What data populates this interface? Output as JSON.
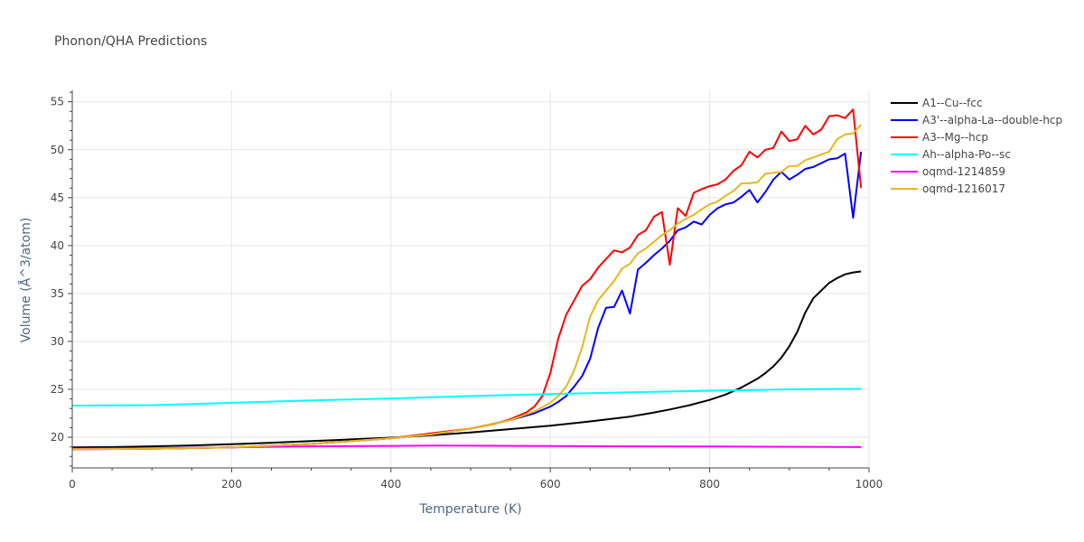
{
  "chart_data": {
    "type": "line",
    "title": "Phonon/QHA Predictions",
    "xlabel": "Temperature (K)",
    "ylabel": "Volume (Å^3/atom)",
    "xlim": [
      0,
      1000
    ],
    "ylim": [
      16.8,
      56.2
    ],
    "xticks": [
      0,
      200,
      400,
      600,
      800,
      1000
    ],
    "yticks": [
      20,
      25,
      30,
      35,
      40,
      45,
      50,
      55
    ],
    "grid": true,
    "legend_position": "right",
    "series": [
      {
        "name": "A1--Cu--fcc",
        "color": "#000000",
        "x": [
          0,
          50,
          100,
          150,
          200,
          250,
          300,
          350,
          400,
          450,
          500,
          550,
          600,
          650,
          700,
          725,
          750,
          775,
          800,
          820,
          840,
          860,
          870,
          880,
          890,
          900,
          910,
          920,
          930,
          940,
          950,
          960,
          970,
          980,
          990
        ],
        "y": [
          18.95,
          18.98,
          19.05,
          19.15,
          19.28,
          19.43,
          19.6,
          19.78,
          19.96,
          20.2,
          20.5,
          20.85,
          21.2,
          21.65,
          22.15,
          22.5,
          22.9,
          23.35,
          23.9,
          24.45,
          25.2,
          26.1,
          26.7,
          27.4,
          28.3,
          29.5,
          31.0,
          33.0,
          34.5,
          35.3,
          36.1,
          36.6,
          37.0,
          37.2,
          37.3
        ]
      },
      {
        "name": "A3'--alpha-La--double-hcp",
        "color": "#0000ff",
        "x": [
          0,
          100,
          200,
          300,
          400,
          450,
          500,
          550,
          580,
          600,
          610,
          620,
          630,
          640,
          650,
          660,
          670,
          680,
          690,
          700,
          710,
          720,
          730,
          740,
          750,
          760,
          770,
          780,
          790,
          800,
          810,
          820,
          830,
          840,
          850,
          860,
          870,
          880,
          890,
          900,
          910,
          920,
          930,
          940,
          950,
          960,
          970,
          980,
          990
        ],
        "y": [
          18.75,
          18.8,
          18.95,
          19.3,
          19.9,
          20.3,
          20.9,
          21.8,
          22.5,
          23.2,
          23.7,
          24.3,
          25.3,
          26.4,
          28.2,
          31.4,
          33.5,
          33.6,
          35.3,
          32.9,
          37.5,
          38.2,
          39.0,
          39.7,
          40.5,
          41.6,
          41.9,
          42.5,
          42.2,
          43.2,
          43.9,
          44.3,
          44.5,
          45.1,
          45.8,
          44.5,
          45.6,
          46.9,
          47.7,
          46.9,
          47.4,
          48.0,
          48.2,
          48.6,
          49.0,
          49.1,
          49.6,
          42.9,
          49.8
        ]
      },
      {
        "name": "A3--Mg--hcp",
        "color": "#ff0000",
        "x": [
          0,
          100,
          200,
          300,
          400,
          450,
          500,
          530,
          550,
          570,
          580,
          590,
          600,
          610,
          620,
          630,
          640,
          650,
          660,
          670,
          680,
          690,
          700,
          710,
          720,
          730,
          740,
          750,
          760,
          770,
          780,
          790,
          800,
          810,
          820,
          830,
          840,
          850,
          860,
          870,
          880,
          890,
          900,
          910,
          920,
          930,
          940,
          950,
          960,
          970,
          980,
          990
        ],
        "y": [
          18.75,
          18.8,
          18.95,
          19.3,
          19.9,
          20.4,
          20.9,
          21.4,
          21.9,
          22.6,
          23.2,
          24.3,
          26.7,
          30.3,
          32.8,
          34.3,
          35.8,
          36.5,
          37.7,
          38.6,
          39.5,
          39.3,
          39.8,
          41.1,
          41.6,
          43.0,
          43.5,
          38.0,
          43.9,
          43.1,
          45.5,
          45.9,
          46.2,
          46.4,
          46.9,
          47.8,
          48.4,
          49.8,
          49.2,
          50.0,
          50.2,
          51.9,
          50.9,
          51.1,
          52.5,
          51.6,
          52.1,
          53.5,
          53.6,
          53.3,
          54.2,
          46.0
        ]
      },
      {
        "name": "Ah--alpha-Po--sc",
        "color": "#00ffff",
        "x": [
          0,
          100,
          200,
          300,
          400,
          500,
          600,
          700,
          800,
          900,
          990
        ],
        "y": [
          23.3,
          23.35,
          23.6,
          23.85,
          24.05,
          24.3,
          24.5,
          24.7,
          24.85,
          25.0,
          25.05
        ]
      },
      {
        "name": "oqmd-1214859",
        "color": "#ff00ff",
        "x": [
          0,
          100,
          200,
          300,
          400,
          460,
          500,
          600,
          700,
          800,
          900,
          990
        ],
        "y": [
          18.8,
          18.85,
          18.95,
          19.05,
          19.1,
          19.13,
          19.12,
          19.08,
          19.05,
          19.03,
          19.01,
          18.98
        ]
      },
      {
        "name": "oqmd-1216017",
        "color": "#e6b81e",
        "x": [
          0,
          100,
          200,
          300,
          400,
          450,
          500,
          550,
          580,
          600,
          610,
          620,
          630,
          640,
          650,
          660,
          670,
          680,
          690,
          700,
          710,
          720,
          730,
          740,
          750,
          760,
          770,
          780,
          790,
          800,
          810,
          820,
          830,
          840,
          850,
          860,
          870,
          880,
          890,
          900,
          910,
          920,
          930,
          940,
          950,
          960,
          970,
          980,
          990
        ],
        "y": [
          18.75,
          18.8,
          18.95,
          19.3,
          19.9,
          20.3,
          20.9,
          21.8,
          22.7,
          23.6,
          24.3,
          25.3,
          27.0,
          29.4,
          32.6,
          34.3,
          35.3,
          36.3,
          37.6,
          38.1,
          39.2,
          39.7,
          40.4,
          41.1,
          41.6,
          42.3,
          42.8,
          43.2,
          43.8,
          44.3,
          44.6,
          45.2,
          45.7,
          46.5,
          46.5,
          46.6,
          47.5,
          47.6,
          47.7,
          48.3,
          48.3,
          48.9,
          49.2,
          49.5,
          49.8,
          51.1,
          51.6,
          51.7,
          52.6
        ]
      }
    ]
  }
}
